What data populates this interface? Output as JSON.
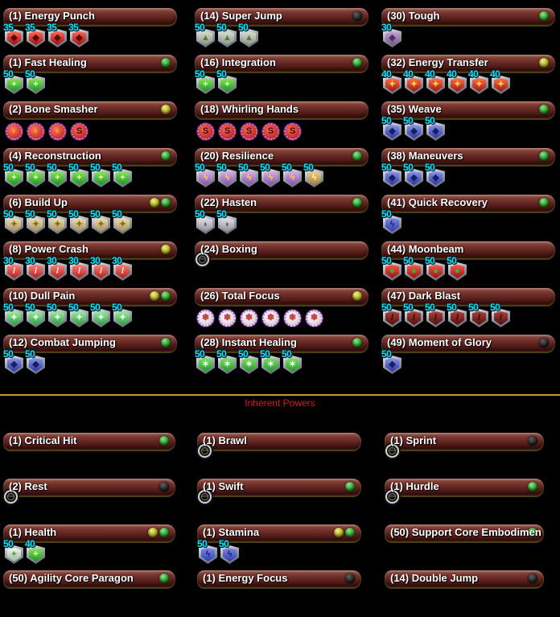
{
  "divider": {
    "label": "Inherent Powers",
    "line_color": "#c8992a",
    "text_color": "#e31212"
  },
  "colors": {
    "background": "#000000",
    "bar_maroon": "#5d211d",
    "label_text": "#ffffff",
    "slot_number": "#0fe2f5",
    "led_green": "#2da02d",
    "led_yellow": "#b6b62c",
    "led_off": "#232323"
  },
  "slot_styles": {
    "dmg-red": {
      "shape": "shield",
      "top": "#ff6a52",
      "bottom": "#9c0f0f",
      "glyph": "◆",
      "glyph_color": "#5c0808"
    },
    "heal-plus": {
      "shape": "shield",
      "top": "#8ce75e",
      "bottom": "#17961c",
      "glyph": "+",
      "glyph_color": "#eaffc8"
    },
    "heal-silver": {
      "shape": "shield",
      "top": "#9ded9d",
      "bottom": "#2b9e3f",
      "glyph": "✦",
      "glyph_color": "#eef8ee"
    },
    "heal-star": {
      "shape": "shield",
      "top": "#7fe063",
      "bottom": "#1d9a2a",
      "glyph": "✶",
      "glyph_color": "#f2fff2"
    },
    "buildup-tan": {
      "shape": "shield",
      "top": "#efe0a6",
      "bottom": "#a8905a",
      "glyph": "✦",
      "glyph_color": "#7d6a34"
    },
    "dmg-silver": {
      "shape": "shield",
      "top": "#ff8072",
      "bottom": "#ae1f1f",
      "glyph": "/",
      "glyph_color": "#f2f2f2"
    },
    "dmg-gold": {
      "shape": "shield",
      "top": "#ff7346",
      "bottom": "#9e1212",
      "glyph": "✦",
      "glyph_color": "#ffcf4a"
    },
    "dark-red": {
      "shape": "shield",
      "top": "#b04038",
      "bottom": "#4e0e0e",
      "glyph": "/",
      "glyph_color": "#2a0606"
    },
    "snipe-red": {
      "shape": "shield",
      "top": "#f65a48",
      "bottom": "#991111",
      "glyph": "●",
      "glyph_color": "#35b535"
    },
    "def-blue": {
      "shape": "shield",
      "top": "#8a97ea",
      "bottom": "#2a35a0",
      "glyph": "◆",
      "glyph_color": "#161f66"
    },
    "end-blue": {
      "shape": "shield",
      "top": "#7d8ae5",
      "bottom": "#2d3bb0",
      "glyph": "ϟ",
      "glyph_color": "#1a2370"
    },
    "jump-grey": {
      "shape": "shield",
      "top": "#d9e0cd",
      "bottom": "#87987c",
      "glyph": "▲",
      "glyph_color": "#5f7157"
    },
    "rech-grey": {
      "shape": "shield",
      "top": "#e2e2e6",
      "bottom": "#8f8f99",
      "glyph": "◗",
      "glyph_color": "#55555f"
    },
    "resist-purple": {
      "shape": "shield",
      "top": "#d9aee8",
      "bottom": "#8653a8",
      "glyph": "ϟ",
      "glyph_color": "#ffd23e"
    },
    "resist-gold": {
      "shape": "shield",
      "top": "#ecd08a",
      "bottom": "#a8802e",
      "glyph": "ϟ",
      "glyph_color": "#fff3c0"
    },
    "resist-violet": {
      "shape": "shield",
      "top": "#c6a8d6",
      "bottom": "#7a5590",
      "glyph": "◈",
      "glyph_color": "#4a2c5c"
    },
    "health-white": {
      "shape": "shield",
      "top": "#f2f6ef",
      "bottom": "#9fb89a",
      "glyph": "+",
      "glyph_color": "#2f9a2f"
    },
    "io-swoosh": {
      "shape": "round",
      "top": "#ff7a5a",
      "bottom": "#b01616",
      "glyph": "◗",
      "glyph_color": "#ffaa1e"
    },
    "io-s": {
      "shape": "round",
      "top": "#ff6a52",
      "bottom": "#a81414",
      "glyph": "S",
      "glyph_color": "#3c0a0a"
    },
    "io-white": {
      "shape": "round",
      "top": "#ffffff",
      "bottom": "#cfc3c3",
      "glyph": "✽",
      "glyph_color": "#c24848"
    },
    "empty": {
      "shape": "ring"
    }
  },
  "main_columns": [
    [
      {
        "label": "(1) Energy Punch",
        "leds": [],
        "slot_groups": [
          {
            "style": "dmg-red",
            "levels": [
              "35",
              "35",
              "35",
              "35"
            ]
          }
        ]
      },
      {
        "label": "(1) Fast Healing",
        "leds": [
          "green"
        ],
        "slot_groups": [
          {
            "style": "heal-plus",
            "levels": [
              "50",
              "50"
            ]
          }
        ]
      },
      {
        "label": "(2) Bone Smasher",
        "leds": [
          "yellow"
        ],
        "slot_groups": [
          {
            "style": "io-swoosh",
            "count": 3
          },
          {
            "style": "io-s",
            "count": 1
          }
        ]
      },
      {
        "label": "(4) Reconstruction",
        "leds": [
          "green"
        ],
        "slot_groups": [
          {
            "style": "heal-plus",
            "levels": [
              "50",
              "50",
              "50",
              "50",
              "50",
              "50"
            ]
          }
        ]
      },
      {
        "label": "(6) Build Up",
        "leds": [
          "yellow",
          "green"
        ],
        "slot_groups": [
          {
            "style": "buildup-tan",
            "levels": [
              "50",
              "50",
              "50",
              "50",
              "50",
              "50"
            ]
          }
        ]
      },
      {
        "label": "(8) Power Crash",
        "leds": [
          "yellow"
        ],
        "slot_groups": [
          {
            "style": "dmg-silver",
            "levels": [
              "30",
              "30",
              "30",
              "30",
              "30",
              "30"
            ]
          }
        ]
      },
      {
        "label": "(10) Dull Pain",
        "leds": [
          "yellow",
          "green"
        ],
        "slot_groups": [
          {
            "style": "heal-silver",
            "levels": [
              "50",
              "50",
              "50",
              "50",
              "50",
              "50"
            ]
          }
        ]
      },
      {
        "label": "(12) Combat Jumping",
        "leds": [
          "green"
        ],
        "slot_groups": [
          {
            "style": "def-blue",
            "levels": [
              "50",
              "50"
            ]
          }
        ]
      }
    ],
    [
      {
        "label": "(14) Super Jump",
        "leds": [
          "off"
        ],
        "slot_groups": [
          {
            "style": "jump-grey",
            "levels": [
              "50",
              "50",
              "50"
            ]
          }
        ]
      },
      {
        "label": "(16) Integration",
        "leds": [
          "green"
        ],
        "slot_groups": [
          {
            "style": "heal-plus",
            "levels": [
              "50",
              "50"
            ]
          }
        ]
      },
      {
        "label": "(18) Whirling Hands",
        "leds": [],
        "slot_groups": [
          {
            "style": "io-s",
            "count": 5
          }
        ]
      },
      {
        "label": "(20) Resilience",
        "leds": [
          "green"
        ],
        "slot_groups": [
          {
            "style": "resist-purple",
            "levels": [
              "50",
              "50",
              "50",
              "50",
              "50"
            ]
          },
          {
            "style": "resist-gold",
            "levels": [
              "50"
            ]
          }
        ]
      },
      {
        "label": "(22) Hasten",
        "leds": [
          "green"
        ],
        "slot_groups": [
          {
            "style": "rech-grey",
            "levels": [
              "50",
              "50"
            ]
          }
        ]
      },
      {
        "label": "(24) Boxing",
        "leds": [],
        "slot_groups": [
          {
            "style": "empty",
            "count": 1
          }
        ]
      },
      {
        "label": "(26) Total Focus",
        "leds": [
          "yellow"
        ],
        "slot_groups": [
          {
            "style": "io-white",
            "count": 6
          }
        ]
      },
      {
        "label": "(28) Instant Healing",
        "leds": [
          "green"
        ],
        "slot_groups": [
          {
            "style": "heal-star",
            "levels": [
              "50",
              "50",
              "50",
              "50",
              "50"
            ]
          }
        ]
      }
    ],
    [
      {
        "label": "(30) Tough",
        "leds": [
          "green"
        ],
        "slot_groups": [
          {
            "style": "resist-violet",
            "levels": [
              "30"
            ]
          }
        ]
      },
      {
        "label": "(32) Energy Transfer",
        "leds": [
          "yellow"
        ],
        "slot_groups": [
          {
            "style": "dmg-gold",
            "levels": [
              "40",
              "40",
              "40",
              "40",
              "40",
              "40"
            ]
          }
        ]
      },
      {
        "label": "(35) Weave",
        "leds": [
          "green"
        ],
        "slot_groups": [
          {
            "style": "def-blue",
            "levels": [
              "50",
              "50",
              "50"
            ]
          }
        ]
      },
      {
        "label": "(38) Maneuvers",
        "leds": [
          "green"
        ],
        "slot_groups": [
          {
            "style": "def-blue",
            "levels": [
              "50",
              "50",
              "50"
            ]
          }
        ]
      },
      {
        "label": "(41) Quick Recovery",
        "leds": [
          "green"
        ],
        "slot_groups": [
          {
            "style": "end-blue",
            "levels": [
              "50"
            ]
          }
        ]
      },
      {
        "label": "(44) Moonbeam",
        "leds": [],
        "slot_groups": [
          {
            "style": "snipe-red",
            "levels": [
              "50",
              "50",
              "50",
              "50"
            ]
          }
        ]
      },
      {
        "label": "(47) Dark Blast",
        "leds": [],
        "slot_groups": [
          {
            "style": "dark-red",
            "levels": [
              "50",
              "50",
              "50",
              "50",
              "50",
              "50"
            ]
          }
        ]
      },
      {
        "label": "(49) Moment of Glory",
        "leds": [
          "off"
        ],
        "slot_groups": [
          {
            "style": "def-blue",
            "levels": [
              "50"
            ]
          }
        ]
      }
    ]
  ],
  "inherent_columns": [
    [
      {
        "label": "(1) Critical Hit",
        "leds": [
          "green"
        ],
        "slot_groups": []
      },
      {
        "label": "(2) Rest",
        "leds": [
          "off"
        ],
        "slot_groups": [
          {
            "style": "empty",
            "count": 1
          }
        ]
      },
      {
        "label": "(1) Health",
        "leds": [
          "yellow",
          "green"
        ],
        "slot_groups": [
          {
            "style": "health-white",
            "levels": [
              "50"
            ]
          },
          {
            "style": "heal-plus",
            "levels": [
              "40"
            ]
          }
        ]
      },
      {
        "label": "(50) Agility Core Paragon",
        "leds": [
          "green"
        ],
        "slot_groups": []
      }
    ],
    [
      {
        "label": "(1) Brawl",
        "leds": [],
        "slot_groups": [
          {
            "style": "empty",
            "count": 1
          }
        ]
      },
      {
        "label": "(1) Swift",
        "leds": [
          "green"
        ],
        "slot_groups": [
          {
            "style": "empty",
            "count": 1
          }
        ]
      },
      {
        "label": "(1) Stamina",
        "leds": [
          "yellow",
          "green"
        ],
        "slot_groups": [
          {
            "style": "end-blue",
            "levels": [
              "50",
              "50"
            ]
          }
        ]
      },
      {
        "label": "(1) Energy Focus",
        "leds": [
          "off"
        ],
        "slot_groups": []
      }
    ],
    [
      {
        "label": "(1) Sprint",
        "leds": [
          "off"
        ],
        "slot_groups": [
          {
            "style": "empty",
            "count": 1
          }
        ]
      },
      {
        "label": "(1) Hurdle",
        "leds": [
          "green"
        ],
        "slot_groups": [
          {
            "style": "empty",
            "count": 1
          }
        ]
      },
      {
        "label": "(50) Support Core Embodimen",
        "leds": [
          "green"
        ],
        "wide": true,
        "slot_groups": []
      },
      {
        "label": "(14) Double Jump",
        "leds": [
          "off"
        ],
        "slot_groups": []
      }
    ]
  ]
}
